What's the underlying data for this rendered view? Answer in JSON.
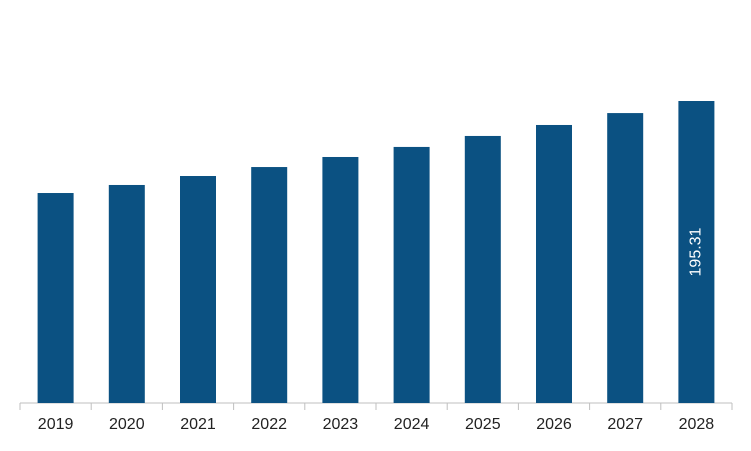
{
  "chart_data": {
    "type": "bar",
    "categories": [
      "2019",
      "2020",
      "2021",
      "2022",
      "2023",
      "2024",
      "2025",
      "2026",
      "2027",
      "2028"
    ],
    "values": [
      135.8,
      141.0,
      146.8,
      152.6,
      159.1,
      165.6,
      172.7,
      179.8,
      187.5,
      195.31
    ],
    "color": "#0b5182",
    "data_labels": "last"
  }
}
